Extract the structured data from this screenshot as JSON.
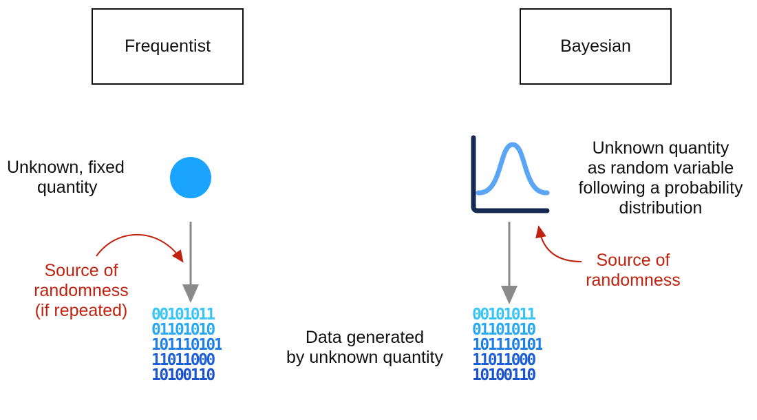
{
  "frequentist": {
    "title": "Frequentist",
    "quantity_label": [
      "Unknown, fixed",
      "quantity"
    ],
    "randomness_label": [
      "Source of",
      "randomness",
      "(if repeated)"
    ],
    "binary_rows": [
      "00101011",
      "01101010",
      "101110101",
      "11011000",
      "10100110"
    ]
  },
  "bayesian": {
    "title": "Bayesian",
    "quantity_label": [
      "Unknown quantity",
      "as random variable",
      "following a probability",
      "distribution"
    ],
    "randomness_label": [
      "Source of",
      "randomness"
    ],
    "binary_rows": [
      "00101011",
      "01101010",
      "101110101",
      "11011000",
      "10100110"
    ]
  },
  "data_label": [
    "Data generated",
    "by unknown quantity"
  ],
  "colors": {
    "accent_blue": "#1aa3ff",
    "curve_blue": "#5aa6f5",
    "axis_navy": "#15284f",
    "red": "#c0220f",
    "arrow_gray": "#8a8a8a"
  }
}
